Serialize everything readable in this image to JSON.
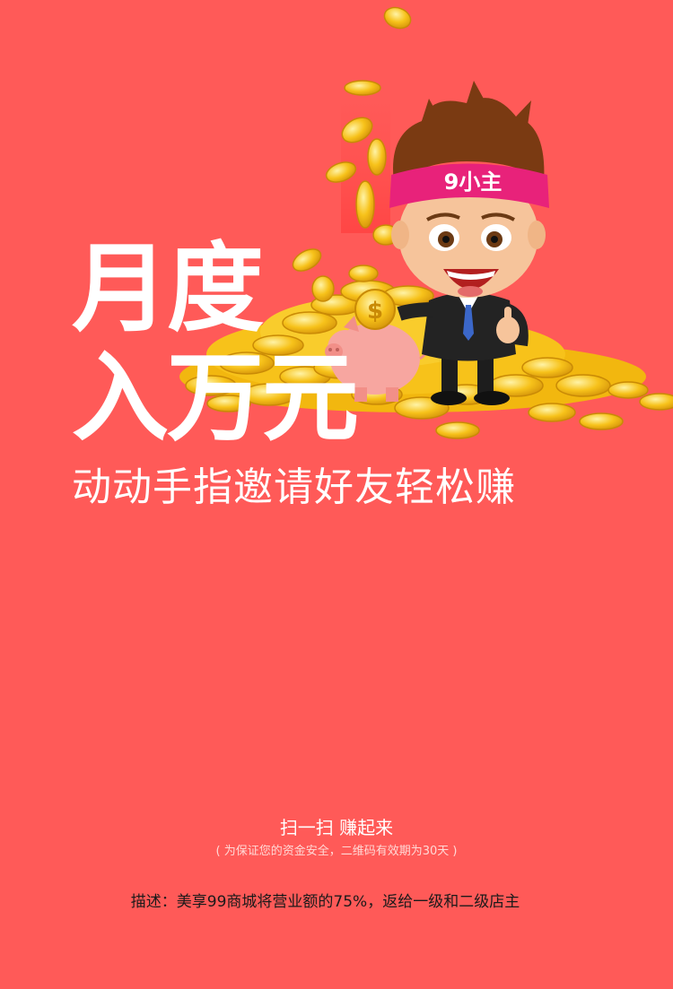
{
  "headline": {
    "line1": "月度",
    "line2": "入万元"
  },
  "subline": "动动手指邀请好友轻松赚",
  "mascot": {
    "headband_text": "9小主"
  },
  "footer": {
    "scan_title": "扫一扫  赚起来",
    "scan_note": "( 为保证您的资金安全，二维码有效期为30天 )",
    "description": "描述：美享99商城将营业额的75%，返给一级和二级店主"
  },
  "colors": {
    "background": "#ff5a58",
    "headband": "#e8227a",
    "coin": "#f7c21a"
  }
}
